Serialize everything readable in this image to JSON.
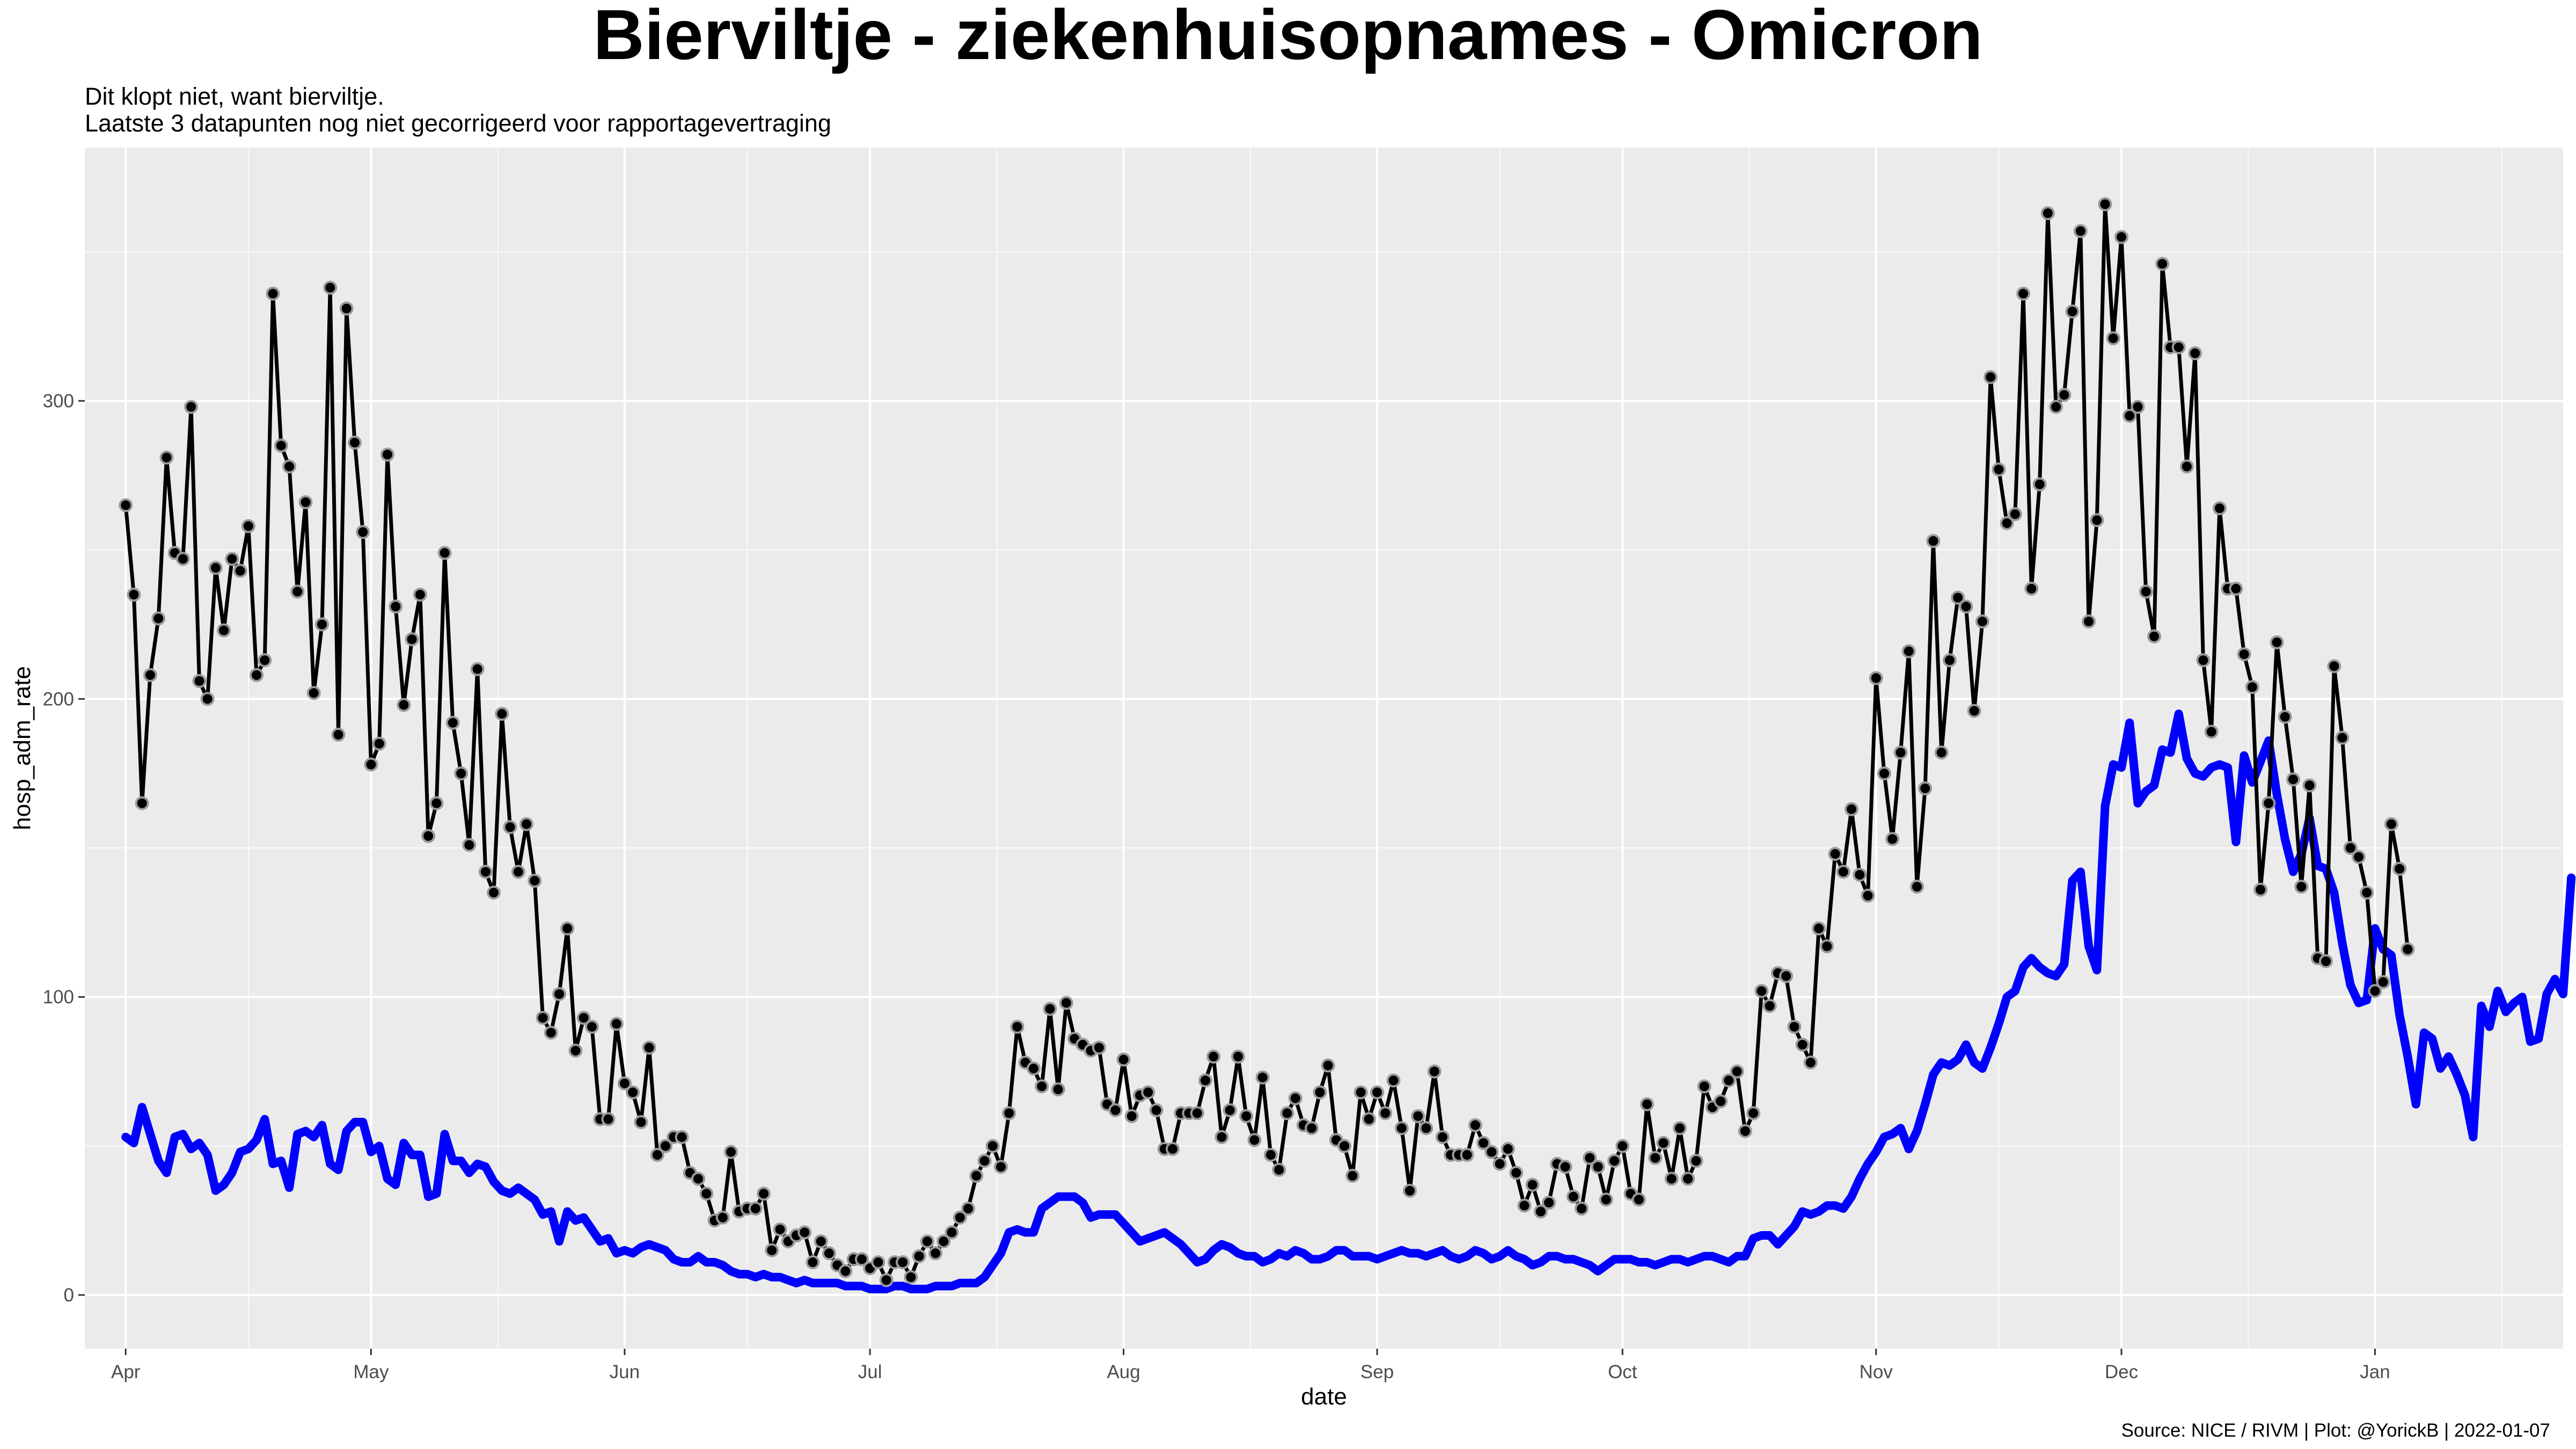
{
  "chart_data": {
    "type": "line",
    "title": "Bierviltje - ziekenhuisopnames - Omicron",
    "subtitle_lines": [
      "Dit klopt niet, want bierviltje.",
      "Laatste 3 datapunten nog niet gecorrigeerd voor rapportagevertraging"
    ],
    "xlabel": "date",
    "ylabel": "hosp_adm_rate",
    "caption": "Source: NICE / RIVM | Plot: @YorickB |  2022-01-07",
    "x_range": [
      "2021-03-27",
      "2022-01-24"
    ],
    "ylim": [
      -18,
      385
    ],
    "y_ticks": [
      0,
      100,
      200,
      300
    ],
    "x_ticks": [
      {
        "label": "Apr",
        "date": "2021-04-01"
      },
      {
        "label": "May",
        "date": "2021-05-01"
      },
      {
        "label": "Jun",
        "date": "2021-06-01"
      },
      {
        "label": "Jul",
        "date": "2021-07-01"
      },
      {
        "label": "Aug",
        "date": "2021-08-01"
      },
      {
        "label": "Sep",
        "date": "2021-09-01"
      },
      {
        "label": "Oct",
        "date": "2021-10-01"
      },
      {
        "label": "Nov",
        "date": "2021-11-01"
      },
      {
        "label": "Dec",
        "date": "2021-12-01"
      },
      {
        "label": "Jan",
        "date": "2022-01-01"
      }
    ],
    "grid": true,
    "legend": "none",
    "series": [
      {
        "style": "black line with points",
        "color": "#000000",
        "start_date": "2021-04-01",
        "values": [
          265,
          235,
          165,
          208,
          227,
          281,
          249,
          247,
          298,
          206,
          200,
          244,
          223,
          247,
          243,
          258,
          208,
          213,
          336,
          285,
          278,
          236,
          266,
          202,
          225,
          338,
          188,
          331,
          286,
          256,
          178,
          185,
          282,
          231,
          198,
          220,
          235,
          154,
          165,
          249,
          192,
          175,
          151,
          210,
          142,
          135,
          195,
          157,
          142,
          158,
          139,
          93,
          88,
          101,
          123,
          82,
          93,
          90,
          59,
          59,
          91,
          71,
          68,
          58,
          83,
          47,
          50,
          53,
          53,
          41,
          39,
          34,
          25,
          26,
          48,
          28,
          29,
          29,
          34,
          15,
          22,
          18,
          20,
          21,
          11,
          18,
          14,
          10,
          8,
          12,
          12,
          9,
          11,
          5,
          11,
          11,
          6,
          13,
          18,
          14,
          18,
          21,
          26,
          29,
          40,
          45,
          50,
          43,
          61,
          90,
          78,
          76,
          70,
          96,
          69,
          98,
          86,
          84,
          82,
          83,
          64,
          62,
          79,
          60,
          67,
          68,
          62,
          49,
          49,
          61,
          61,
          61,
          72,
          80,
          53,
          62,
          80,
          60,
          52,
          73,
          47,
          42,
          61,
          66,
          57,
          56,
          68,
          77,
          52,
          50,
          40,
          68,
          59,
          68,
          61,
          72,
          56,
          35,
          60,
          56,
          75,
          53,
          47,
          47,
          47,
          57,
          51,
          48,
          44,
          49,
          41,
          30,
          37,
          28,
          31,
          44,
          43,
          33,
          29,
          46,
          43,
          32,
          45,
          50,
          34,
          32,
          64,
          46,
          51,
          39,
          56,
          39,
          45,
          70,
          63,
          65,
          72,
          75,
          55,
          61,
          102,
          97,
          108,
          107,
          90,
          84,
          78,
          123,
          117,
          148,
          142,
          163,
          141,
          134,
          207,
          175,
          153,
          182,
          216,
          137,
          170,
          253,
          182,
          213,
          234,
          231,
          196,
          226,
          308,
          277,
          259,
          262,
          336,
          237,
          272,
          363,
          298,
          302,
          330,
          357,
          226,
          260,
          366,
          321,
          355,
          295,
          298,
          236,
          221,
          346,
          318,
          318,
          278,
          316,
          213,
          189,
          264,
          237,
          237,
          215,
          204,
          136,
          165,
          219,
          194,
          173,
          137,
          171,
          113,
          112,
          211,
          187,
          150,
          147,
          135,
          102,
          105,
          158,
          143,
          116
        ]
      },
      {
        "style": "blue line",
        "color": "#0000ff",
        "start_date": "2021-04-01",
        "values": [
          53,
          51,
          63,
          54,
          45,
          41,
          53,
          54,
          49,
          51,
          47,
          35,
          37,
          41,
          48,
          49,
          52,
          59,
          44,
          45,
          36,
          54,
          55,
          53,
          57,
          44,
          42,
          55,
          58,
          58,
          48,
          50,
          39,
          37,
          51,
          47,
          47,
          33,
          34,
          54,
          45,
          45,
          41,
          44,
          43,
          38,
          35,
          34,
          36,
          34,
          32,
          27,
          28,
          18,
          28,
          25,
          26,
          22,
          18,
          19,
          14,
          15,
          14,
          16,
          17,
          16,
          15,
          12,
          11,
          11,
          13,
          11,
          11,
          10,
          8,
          7,
          7,
          6,
          7,
          6,
          6,
          5,
          4,
          5,
          4,
          4,
          4,
          4,
          3,
          3,
          3,
          2,
          2,
          2,
          3,
          3,
          2,
          2,
          2,
          3,
          3,
          3,
          4,
          4,
          4,
          6,
          10,
          14,
          21,
          22,
          21,
          21,
          29,
          31,
          33,
          33,
          33,
          31,
          26,
          27,
          27,
          27,
          24,
          21,
          18,
          19,
          20,
          21,
          19,
          17,
          14,
          11,
          12,
          15,
          17,
          16,
          14,
          13,
          13,
          11,
          12,
          14,
          13,
          15,
          14,
          12,
          12,
          13,
          15,
          15,
          13,
          13,
          13,
          12,
          13,
          14,
          15,
          14,
          14,
          13,
          14,
          15,
          13,
          12,
          13,
          15,
          14,
          12,
          13,
          15,
          13,
          12,
          10,
          11,
          13,
          13,
          12,
          12,
          11,
          10,
          8,
          10,
          12,
          12,
          12,
          11,
          11,
          10,
          11,
          12,
          12,
          11,
          12,
          13,
          13,
          12,
          11,
          13,
          13,
          19,
          20,
          20,
          17,
          20,
          23,
          28,
          27,
          28,
          30,
          30,
          29,
          33,
          39,
          44,
          48,
          53,
          54,
          56,
          49,
          55,
          64,
          74,
          78,
          77,
          79,
          84,
          78,
          76,
          83,
          91,
          100,
          102,
          110,
          113,
          110,
          108,
          107,
          111,
          139,
          142,
          117,
          109,
          164,
          178,
          177,
          192,
          165,
          169,
          171,
          183,
          182,
          195,
          180,
          175,
          174,
          177,
          178,
          177,
          152,
          181,
          172,
          179,
          186,
          168,
          153,
          142,
          148,
          160,
          144,
          143,
          135,
          118,
          104,
          98,
          99,
          123,
          116,
          114,
          94,
          80,
          64,
          88,
          86,
          76,
          80,
          74,
          67,
          53,
          97,
          90,
          102,
          95,
          98,
          100,
          85,
          86,
          101,
          106,
          101,
          140
        ]
      }
    ]
  }
}
